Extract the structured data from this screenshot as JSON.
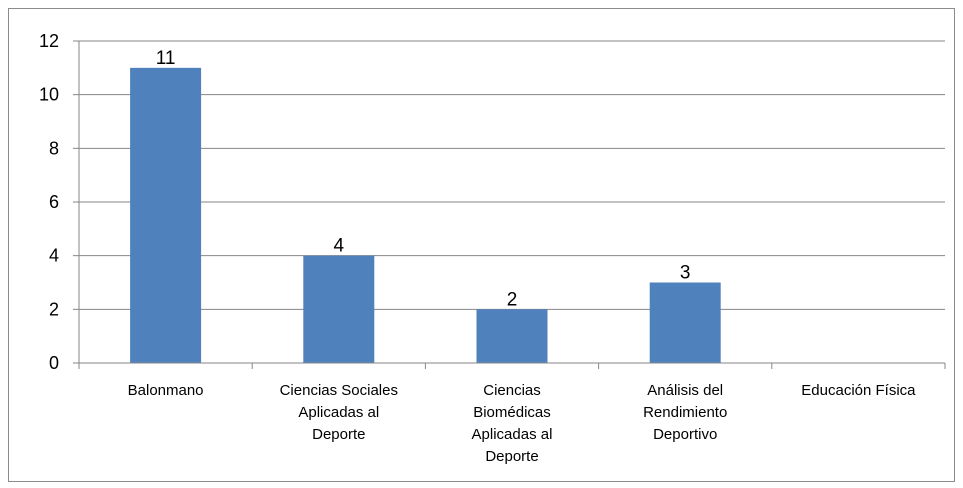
{
  "chart_data": {
    "type": "bar",
    "title": "",
    "xlabel": "",
    "ylabel": "",
    "categories": [
      [
        "Balonmano"
      ],
      [
        "Ciencias Sociales",
        "Aplicadas al",
        "Deporte"
      ],
      [
        "Ciencias",
        "Biomédicas",
        "Aplicadas al",
        "Deporte"
      ],
      [
        "Análisis del",
        "Rendimiento",
        "Deportivo"
      ],
      [
        "Educación Física"
      ]
    ],
    "values": [
      11,
      4,
      2,
      3,
      null
    ],
    "data_labels": [
      "11",
      "4",
      "2",
      "3",
      ""
    ],
    "ylim": [
      0,
      12
    ],
    "yticks": [
      "0",
      "2",
      "4",
      "6",
      "8",
      "10",
      "12"
    ],
    "grid": true,
    "legend": "none",
    "bar_color": "#4f81bd",
    "grid_color": "#868686"
  }
}
